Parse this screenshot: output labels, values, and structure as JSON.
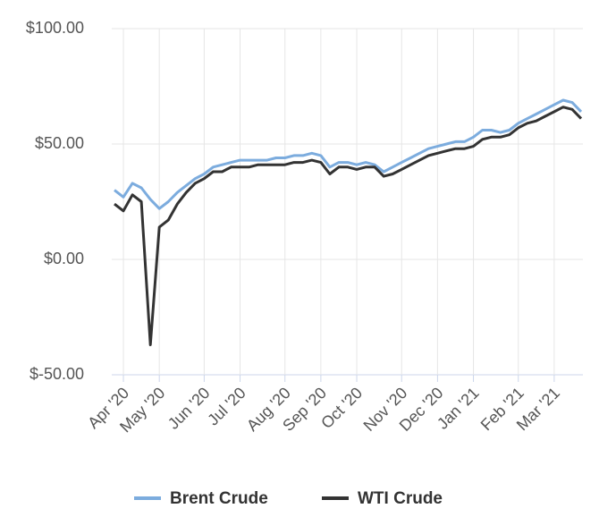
{
  "chart_data": {
    "type": "line",
    "categories": [
      null,
      "Apr '20",
      null,
      null,
      null,
      "May '20",
      null,
      null,
      null,
      null,
      "Jun '20",
      null,
      null,
      null,
      "Jul '20",
      null,
      null,
      null,
      null,
      "Aug '20",
      null,
      null,
      null,
      "Sep '20",
      null,
      null,
      null,
      "Oct '20",
      null,
      null,
      null,
      null,
      "Nov '20",
      null,
      null,
      null,
      "Dec '20",
      null,
      null,
      null,
      "Jan '21",
      null,
      null,
      null,
      null,
      "Feb '21",
      null,
      null,
      null,
      "Mar '21",
      null,
      null,
      null
    ],
    "series": [
      {
        "name": "Brent Crude",
        "color": "#7cacde",
        "values": [
          30,
          27,
          33,
          31,
          26,
          22,
          25,
          29,
          32,
          35,
          37,
          40,
          41,
          42,
          43,
          43,
          43,
          43,
          44,
          44,
          45,
          45,
          46,
          45,
          40,
          42,
          42,
          41,
          42,
          41,
          38,
          40,
          42,
          44,
          46,
          48,
          49,
          50,
          51,
          51,
          53,
          56,
          56,
          55,
          56,
          59,
          61,
          63,
          65,
          67,
          69,
          68,
          64
        ]
      },
      {
        "name": "WTI Crude",
        "color": "#333333",
        "values": [
          24,
          21,
          28,
          25,
          -37,
          14,
          17,
          24,
          29,
          33,
          35,
          38,
          38,
          40,
          40,
          40,
          41,
          41,
          41,
          41,
          42,
          42,
          43,
          42,
          37,
          40,
          40,
          39,
          40,
          40,
          36,
          37,
          39,
          41,
          43,
          45,
          46,
          47,
          48,
          48,
          49,
          52,
          53,
          53,
          54,
          57,
          59,
          60,
          62,
          64,
          66,
          65,
          61
        ]
      }
    ],
    "ylim": [
      -50,
      100
    ],
    "yticks": [
      {
        "value": -50,
        "label": "$-50.00"
      },
      {
        "value": 0,
        "label": "$0.00"
      },
      {
        "value": 50,
        "label": "$50.00"
      },
      {
        "value": 100,
        "label": "$100.00"
      }
    ],
    "grid": true
  }
}
